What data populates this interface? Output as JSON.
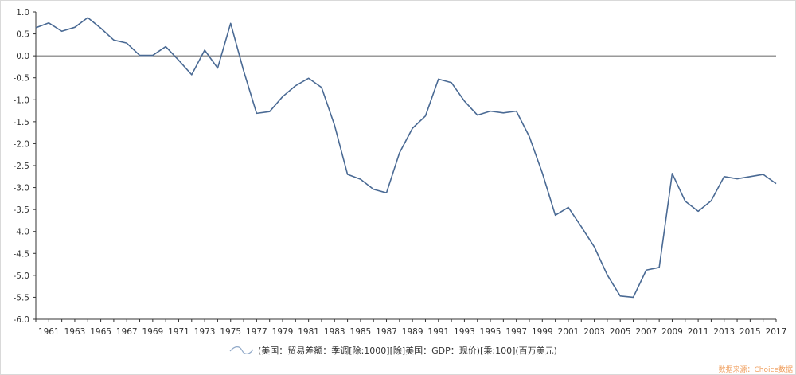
{
  "chart_data": {
    "type": "line",
    "title": "",
    "xlabel": "",
    "ylabel": "",
    "ylim": [
      -6.0,
      1.0
    ],
    "yticks": [
      "1.0",
      "0.5",
      "0.0",
      "-0.5",
      "-1.0",
      "-1.5",
      "-2.0",
      "-2.5",
      "-3.0",
      "-3.5",
      "-4.0",
      "-4.5",
      "-5.0",
      "-5.5",
      "-6.0"
    ],
    "x_tick_labels": [
      "1961",
      "1963",
      "1965",
      "1967",
      "1969",
      "1971",
      "1973",
      "1975",
      "1977",
      "1979",
      "1981",
      "1983",
      "1985",
      "1987",
      "1989",
      "1991",
      "1993",
      "1995",
      "1997",
      "1999",
      "2001",
      "2003",
      "2005",
      "2007",
      "2009",
      "2011",
      "2013",
      "2015",
      "2017"
    ],
    "x": [
      1960,
      1961,
      1962,
      1963,
      1964,
      1965,
      1966,
      1967,
      1968,
      1969,
      1970,
      1971,
      1972,
      1973,
      1974,
      1975,
      1976,
      1977,
      1978,
      1979,
      1980,
      1981,
      1982,
      1983,
      1984,
      1985,
      1986,
      1987,
      1988,
      1989,
      1990,
      1991,
      1992,
      1993,
      1994,
      1995,
      1996,
      1997,
      1998,
      1999,
      2000,
      2001,
      2002,
      2003,
      2004,
      2005,
      2006,
      2007,
      2008,
      2009,
      2010,
      2011,
      2012,
      2013,
      2014,
      2015,
      2016,
      2017
    ],
    "series": [
      {
        "name": "(美国：贸易差额：季调[除:1000][除]美国：GDP：现价)[乘:100](百万美元)",
        "color": "#4a6a94",
        "values": [
          0.64,
          0.75,
          0.56,
          0.65,
          0.87,
          0.63,
          0.36,
          0.29,
          0.01,
          0.01,
          0.21,
          -0.1,
          -0.43,
          0.13,
          -0.28,
          0.74,
          -0.34,
          -1.31,
          -1.27,
          -0.93,
          -0.68,
          -0.51,
          -0.72,
          -1.58,
          -2.7,
          -2.81,
          -3.04,
          -3.12,
          -2.21,
          -1.65,
          -1.37,
          -0.53,
          -0.61,
          -1.03,
          -1.35,
          -1.26,
          -1.3,
          -1.26,
          -1.84,
          -2.67,
          -3.63,
          -3.45,
          -3.89,
          -4.35,
          -4.99,
          -5.47,
          -5.5,
          -4.88,
          -4.82,
          -2.68,
          -3.31,
          -3.54,
          -3.3,
          -2.75,
          -2.8,
          -2.75,
          -2.7,
          -2.91
        ]
      }
    ],
    "zero_line": true,
    "grid": false,
    "legend_position": "bottom-center"
  },
  "source_note": "数据来源：Choice数据"
}
